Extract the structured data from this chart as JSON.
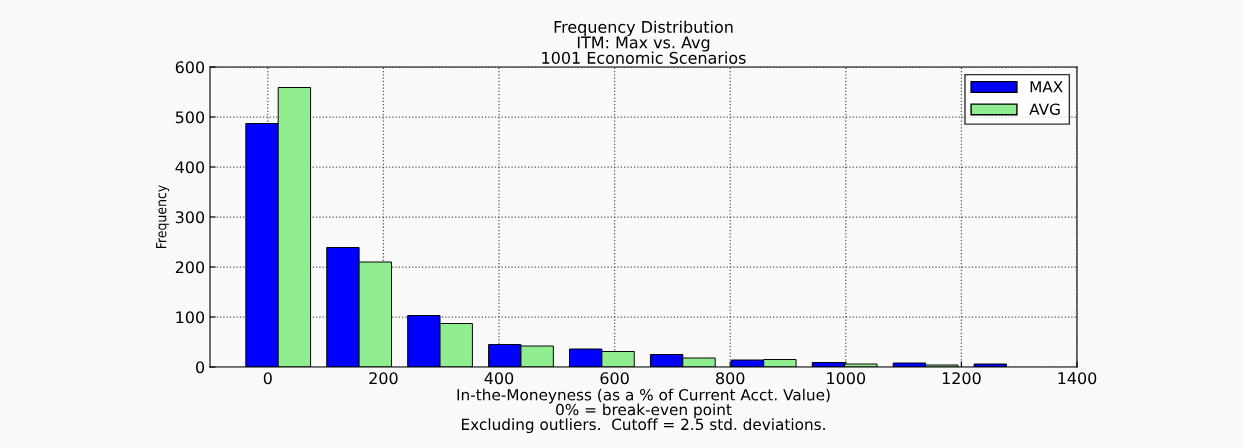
{
  "chart_data": {
    "type": "histogram",
    "title": "Frequency Distribution\nITM: Max vs. Avg\n1001 Economic Scenarios",
    "xlabel": "In-the-Moneyness (as a % of Current Acct. Value)\n0% = break-even point\nExcluding outliers.  Cutoff = 2.5 std. deviations.",
    "ylabel": "Frequency",
    "bins": [
      -52,
      88,
      228,
      368,
      508,
      648,
      788,
      928,
      1068,
      1208,
      1348
    ],
    "series": [
      {
        "name": "MAX",
        "color": "#0000ff",
        "values": [
          487,
          239,
          103,
          45,
          36,
          25,
          14,
          9,
          8,
          6
        ]
      },
      {
        "name": "AVG",
        "color": "#90ee90",
        "values": [
          559,
          210,
          87,
          42,
          31,
          18,
          15,
          6,
          4,
          null
        ]
      }
    ],
    "xlim": [
      -100,
      1400
    ],
    "xticks": [
      0,
      200,
      400,
      600,
      800,
      1000,
      1200,
      1400
    ],
    "ylim": [
      0,
      600
    ],
    "yticks": [
      0,
      100,
      200,
      300,
      400,
      500,
      600
    ],
    "grid": true,
    "legend": "top right"
  }
}
